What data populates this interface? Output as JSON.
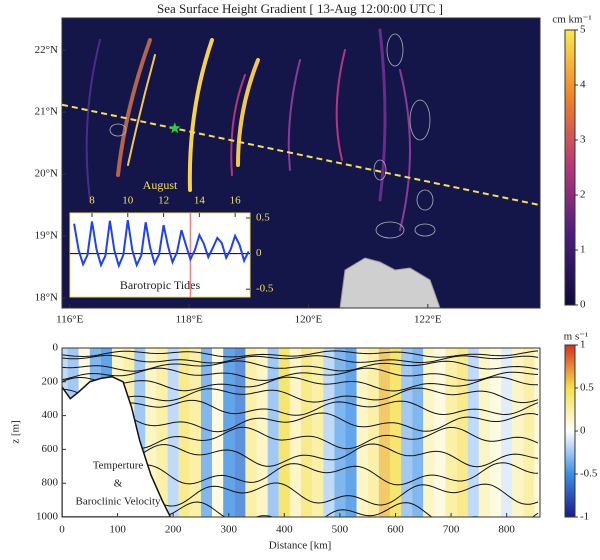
{
  "chart_data": [
    {
      "type": "map",
      "title": "Sea Surface Height Gradient  [ 13-Aug 12:00:00 UTC ]",
      "xlim": [
        115.87,
        123.88
      ],
      "ylim": [
        17.84,
        22.52
      ],
      "xticks": [
        {
          "value": 116,
          "label": "116°E"
        },
        {
          "value": 118,
          "label": "118°E"
        },
        {
          "value": 120,
          "label": "120°E"
        },
        {
          "value": 122,
          "label": "122°E"
        }
      ],
      "yticks": [
        {
          "value": 18,
          "label": "18°N"
        },
        {
          "value": 19,
          "label": "19°N"
        },
        {
          "value": 20,
          "label": "20°N"
        },
        {
          "value": 21,
          "label": "21°N"
        },
        {
          "value": 22,
          "label": "22°N"
        }
      ],
      "colorbar": {
        "label": "cm km⁻¹",
        "lim": [
          0,
          5
        ],
        "ticks": [
          0,
          1,
          2,
          3,
          4,
          5
        ],
        "colors": [
          "#0b0b3b",
          "#4a1c7c",
          "#b5367a",
          "#f07f2a",
          "#fce84a"
        ]
      },
      "transect": {
        "lon": [
          115.87,
          123.88
        ],
        "lat": [
          21.12,
          19.5
        ],
        "color": "#f5e050"
      },
      "station": {
        "lon": 117.76,
        "lat": 20.74,
        "color": "#2ecc40"
      }
    },
    {
      "type": "line",
      "title": "Barotropic Tides",
      "xlabel": "August",
      "xlim": [
        6.77,
        16.83
      ],
      "ylim": [
        -0.61,
        0.57
      ],
      "xticks": [
        8,
        10,
        12,
        14,
        16
      ],
      "yticks": [
        -0.5,
        0,
        0.5
      ],
      "x": [
        7,
        7.25,
        7.5,
        7.75,
        8,
        8.25,
        8.5,
        8.75,
        9,
        9.25,
        9.5,
        9.75,
        10,
        10.25,
        10.5,
        10.75,
        11,
        11.25,
        11.5,
        11.75,
        12,
        12.25,
        12.5,
        12.75,
        13,
        13.25,
        13.5,
        13.75,
        14,
        14.25,
        14.5,
        14.75,
        15,
        15.25,
        15.5,
        15.75,
        16,
        16.25,
        16.5,
        16.75
      ],
      "values": [
        0.42,
        0.05,
        -0.15,
        -0.02,
        0.45,
        0.06,
        -0.16,
        -0.03,
        0.46,
        0.04,
        -0.17,
        -0.02,
        0.47,
        0.05,
        -0.16,
        -0.03,
        0.44,
        0.08,
        -0.14,
        -0.01,
        0.4,
        0.1,
        -0.12,
        0.02,
        0.33,
        0.12,
        -0.08,
        0.05,
        0.26,
        0.14,
        -0.05,
        0.08,
        0.22,
        0.15,
        -0.06,
        0.06,
        0.25,
        0.12,
        -0.1,
        0.03
      ],
      "color": "#1f3fff",
      "current_time": 13.5,
      "current_color": "#f08080"
    },
    {
      "type": "section",
      "annotation": [
        "Temperture",
        "&",
        "Baroclinic Velocity"
      ],
      "xlabel": "Distance [km]",
      "ylabel": "z [m]",
      "xlim": [
        0,
        860
      ],
      "ylim": [
        1000,
        0
      ],
      "xticks": [
        0,
        100,
        200,
        300,
        400,
        500,
        600,
        700,
        800
      ],
      "yticks": [
        0,
        200,
        400,
        600,
        800,
        1000
      ],
      "colorbar": {
        "label": "m s⁻¹",
        "lim": [
          -1,
          1
        ],
        "ticks": [
          -1,
          -0.5,
          0,
          0.5,
          1
        ],
        "colors": [
          "#1a1a8c",
          "#3a8ee6",
          "#ffffff",
          "#f5e04a",
          "#d7301f"
        ]
      },
      "velocity": {
        "x": [
          0,
          20,
          40,
          60,
          80,
          100,
          120,
          140,
          160,
          180,
          200,
          220,
          240,
          260,
          280,
          300,
          320,
          340,
          360,
          380,
          400,
          420,
          440,
          460,
          480,
          500,
          520,
          540,
          560,
          580,
          600,
          620,
          640,
          660,
          680,
          700,
          720,
          740,
          760,
          780,
          800,
          820,
          840,
          860
        ],
        "values": [
          -0.2,
          -0.3,
          0.1,
          -0.4,
          -0.5,
          0.2,
          0.3,
          -0.3,
          0.2,
          0.3,
          -0.2,
          0.4,
          0.3,
          -0.4,
          0.1,
          -0.5,
          -0.6,
          0.3,
          0.2,
          -0.3,
          0.5,
          0.2,
          0.4,
          0.3,
          -0.2,
          -0.4,
          -0.5,
          0.2,
          0.3,
          0.6,
          0.5,
          -0.3,
          -0.4,
          0.2,
          0.1,
          0.3,
          0.4,
          -0.2,
          0.2,
          0.1,
          -0.1,
          0.2,
          0.3,
          0.1
        ]
      },
      "bathymetry": {
        "x": [
          0,
          15,
          30,
          50,
          70,
          90,
          110,
          125,
          140,
          160,
          180,
          195
        ],
        "depth": [
          230,
          300,
          260,
          200,
          180,
          170,
          200,
          350,
          550,
          750,
          900,
          1000
        ]
      }
    }
  ]
}
